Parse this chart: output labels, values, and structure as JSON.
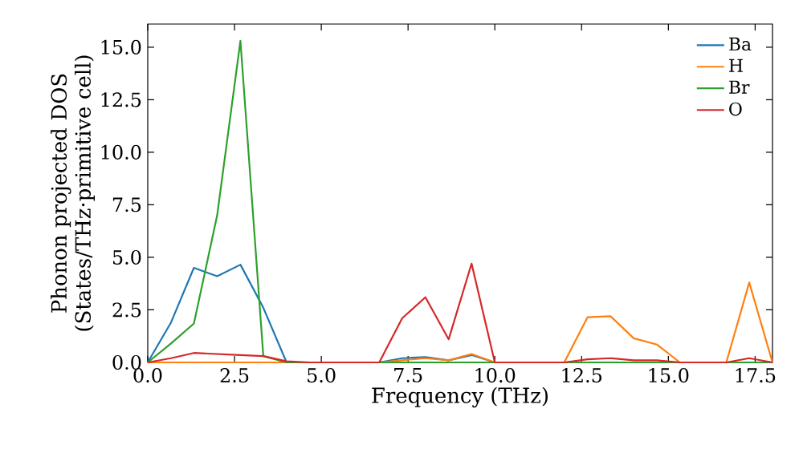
{
  "chart_data": {
    "type": "line",
    "xlabel": "Frequency (THz)",
    "ylabel": "Phonon projected DOS (States/THz·primitive cell)",
    "x": [
      0,
      0.67,
      1.33,
      2.0,
      2.67,
      3.33,
      4.0,
      4.67,
      5.33,
      6.0,
      6.67,
      7.33,
      8.0,
      8.67,
      9.33,
      10.0,
      10.67,
      11.33,
      12.0,
      12.67,
      13.33,
      14.0,
      14.67,
      15.33,
      16.0,
      16.67,
      17.33,
      18.0
    ],
    "series": [
      {
        "name": "Ba",
        "color": "#1f77b4",
        "values": [
          0,
          1.9,
          4.5,
          4.1,
          4.65,
          2.6,
          0,
          null,
          null,
          null,
          0,
          0.2,
          0.25,
          0.1,
          0.35,
          0,
          null,
          null,
          null,
          null,
          null,
          null,
          null,
          null,
          null,
          null,
          null,
          null
        ]
      },
      {
        "name": "H",
        "color": "#ff7f0e",
        "values": [
          0,
          0,
          0,
          0,
          0,
          0,
          0,
          0,
          0,
          0,
          0,
          0.1,
          0.2,
          0.1,
          0.4,
          0,
          0,
          0,
          0,
          2.15,
          2.2,
          1.15,
          0.85,
          0,
          0,
          0,
          3.8,
          0
        ]
      },
      {
        "name": "Br",
        "color": "#2ca02c",
        "values": [
          0,
          0.9,
          1.85,
          7.0,
          15.3,
          0.3,
          0,
          0,
          0,
          0,
          0,
          0,
          0,
          0,
          0,
          0,
          0,
          0,
          0,
          0,
          0,
          0,
          0,
          0,
          0,
          0,
          0,
          0
        ]
      },
      {
        "name": "O",
        "color": "#d62728",
        "values": [
          0,
          0.2,
          0.45,
          0.4,
          0.35,
          0.3,
          0.05,
          0,
          0,
          0,
          0,
          2.1,
          3.1,
          1.1,
          4.7,
          0,
          0,
          0,
          0,
          0.15,
          0.2,
          0.1,
          0.1,
          0,
          0,
          0,
          0.2,
          0
        ]
      }
    ],
    "xlim": [
      0,
      18.0
    ],
    "ylim": [
      0,
      16.1
    ],
    "xticks": [
      {
        "value": 0,
        "label": "0.0"
      },
      {
        "value": 2.5,
        "label": "2.5"
      },
      {
        "value": 5,
        "label": "5.0"
      },
      {
        "value": 7.5,
        "label": "7.5"
      },
      {
        "value": 10,
        "label": "10.0"
      },
      {
        "value": 12.5,
        "label": "12.5"
      },
      {
        "value": 15,
        "label": "15.0"
      },
      {
        "value": 17.5,
        "label": "17.5"
      }
    ],
    "yticks": [
      {
        "value": 0,
        "label": "0.0"
      },
      {
        "value": 2.5,
        "label": "2.5"
      },
      {
        "value": 5,
        "label": "5.0"
      },
      {
        "value": 7.5,
        "label": "7.5"
      },
      {
        "value": 10,
        "label": "10.0"
      },
      {
        "value": 12.5,
        "label": "12.5"
      },
      {
        "value": 15,
        "label": "15.0"
      }
    ],
    "legend": "top right",
    "grid": false,
    "marker": "none",
    "line_style": "solid"
  }
}
